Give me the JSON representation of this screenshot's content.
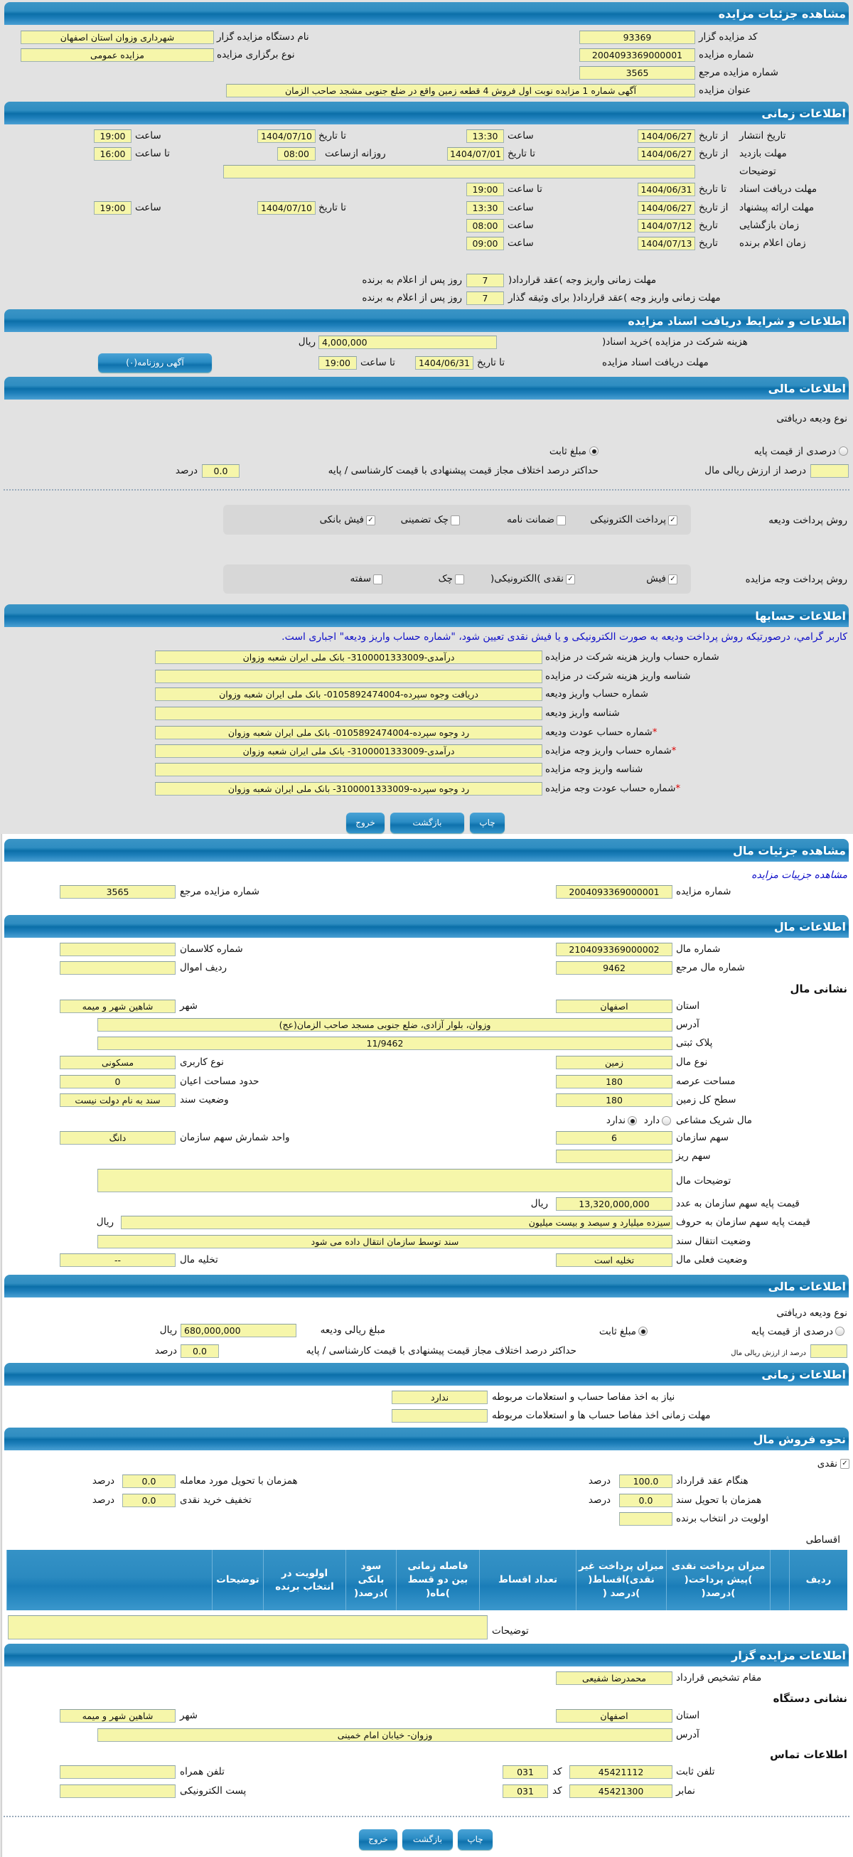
{
  "colors": {
    "header": "#0b6fa9",
    "field_bg": "#f6f6aa",
    "page_bg": "#e2e2e2",
    "notice_text": "#1010c8",
    "required_star": "#dd0000"
  },
  "auction": {
    "title": "مشاهده جزئیات مزایده",
    "auctioneer_code": {
      "label": "کد مزایده گزار",
      "value": "93369"
    },
    "auctioneer_name": {
      "label": "نام دستگاه مزایده گزار",
      "value": "شهرداری وزوان استان اصفهان"
    },
    "auction_number": {
      "label": "شماره مزایده",
      "value": "2004093369000001"
    },
    "auction_type": {
      "label": "نوع برگزاری مزایده",
      "value": "مزایده عمومی"
    },
    "reference_number": {
      "label": "شماره مزایده مرجع",
      "value": "3565"
    },
    "subject": {
      "label": "عنوان مزایده",
      "value": "آگهی شماره 1 مزایده نوبت اول فروش 4 قطعه زمین واقع در ضلع جنوبی مشجد صاحب الزمان"
    }
  },
  "timing": {
    "title": "اطلاعات زمانی",
    "publish": {
      "label": "تاریخ انتشار",
      "from_label": "از تاریخ",
      "from_date": "1404/06/27",
      "from_time_label": "ساعت",
      "from_time": "13:30",
      "to_label": "تا تاریخ",
      "to_date": "1404/07/10",
      "to_time_label": "ساعت",
      "to_time": "19:00"
    },
    "visit": {
      "label": "مهلت بازدید",
      "from_label": "از تاریخ",
      "from_date": "1404/06/27",
      "to_label": "تا تاریخ",
      "to_date": "1404/07/01",
      "daily_from_label": "روزانه ازساعت",
      "daily_from": "08:00",
      "daily_to_label": "تا ساعت",
      "daily_to": "16:00"
    },
    "description": {
      "label": "توضیحات",
      "value": ""
    },
    "documents": {
      "label": "مهلت دریافت اسناد",
      "to_label": "تا تاریخ",
      "to_date": "1404/06/31",
      "to_time_label": "تا ساعت",
      "to_time": "19:00"
    },
    "offer": {
      "label": "مهلت ارائه پیشنهاد",
      "from_label": "از تاریخ",
      "from_date": "1404/06/27",
      "from_time_label": "ساعت",
      "from_time": "13:30",
      "to_label": "تا تاریخ",
      "to_date": "1404/07/10",
      "to_time_label": "ساعت",
      "to_time": "19:00"
    },
    "opening": {
      "label": "زمان بازگشایی",
      "date_label": "تاریخ",
      "date": "1404/07/12",
      "time_label": "ساعت",
      "time": "08:00"
    },
    "winner": {
      "label": "زمان اعلام برنده",
      "date_label": "تاریخ",
      "date": "1404/07/13",
      "time_label": "ساعت",
      "time": "09:00"
    },
    "payment_deadline": {
      "label": "مهلت زمانی واریز وجه )عقد قرارداد(",
      "value": "7",
      "suffix": "روز پس از اعلام به برنده"
    },
    "collateral_deadline": {
      "label": "مهلت زمانی واریز وجه )عقد قرارداد( برای وثیقه گذار",
      "value": "7",
      "suffix": "روز پس از اعلام به برنده"
    }
  },
  "documents": {
    "title": "اطلاعات و شرایط دریافت اسناد مزایده",
    "fee": {
      "label": "هزینه شرکت در مزایده )خرید اسناد(",
      "value": "4,000,000",
      "unit": "ریال"
    },
    "deadline": {
      "label": "مهلت دریافت اسناد مزایده",
      "to_date_label": "تا تاریخ",
      "to_date": "1404/06/31",
      "to_time_label": "تا ساعت",
      "to_time": "19:00"
    },
    "newspaper_button": "آگهی روزنامه(۰)"
  },
  "finance": {
    "title": "اطلاعات مالی",
    "deposit_type_label": "نوع ودیعه دریافتی",
    "percent_option": {
      "label": "درصدی از قیمت پایه",
      "selected": false
    },
    "fixed_option": {
      "label": "مبلغ ثابت",
      "selected": true
    },
    "percent_of_value_label": "درصد از ارزش ریالی مال",
    "percent_of_value": "",
    "max_diff_label": "حداکتر درصد اختلاف مجاز قیمت پیشنهادی با قیمت کارشناسی / پایه",
    "max_diff": "0.0",
    "percent_unit": "درصد",
    "deposit_methods": {
      "label": "روش پرداخت ودیعه",
      "options": [
        {
          "label": "پرداخت الکترونیکی",
          "checked": true
        },
        {
          "label": "ضمانت نامه",
          "checked": false
        },
        {
          "label": "چک تضمینی",
          "checked": false
        },
        {
          "label": "فیش بانکی",
          "checked": true
        }
      ]
    },
    "payment_methods": {
      "label": "روش پرداخت وجه مزایده",
      "options": [
        {
          "label": "فیش",
          "checked": true
        },
        {
          "label": "نقدی )الکترونیکی(",
          "checked": true
        },
        {
          "label": "چک",
          "checked": false
        },
        {
          "label": "سفته",
          "checked": false
        }
      ]
    }
  },
  "accounts": {
    "title": "اطلاعات حسابها",
    "notice": "کاربر گرامي، درصورتیکه روش پرداخت ودیعه به صورت الکترونیکی و یا فیش نقدی تعیین شود، \"شماره حساب واریز ودیعه\" اجباری است.",
    "rows": [
      {
        "label": "شماره حساب واریز هزینه شرکت در مزایده",
        "value": "درآمدی-3100001333009- بانک ملی ایران شعبه وزوان",
        "required": false
      },
      {
        "label": "شناسه واریز هزینه شرکت در مزایده",
        "value": "",
        "required": false
      },
      {
        "label": "شماره حساب واریز ودیعه",
        "value": "دریافت وجوه سپرده-0105892474004- بانک ملی ایران شعبه وزوان",
        "required": false
      },
      {
        "label": "شناسه واریز ودیعه",
        "value": "",
        "required": false
      },
      {
        "label": "شماره حساب عودت ودیعه",
        "value": "رد وجوه سپرده-0105892474004- بانک ملی ایران شعبه وزوان",
        "required": true
      },
      {
        "label": "شماره حساب واریز وجه مزایده",
        "value": "درآمدی-3100001333009- بانک ملی ایران شعبه وزوان",
        "required": true
      },
      {
        "label": "شناسه واریز وجه مزایده",
        "value": "",
        "required": false
      },
      {
        "label": "شماره حساب عودت وجه مزایده",
        "value": "رد وجوه سپرده-3100001333009- بانک ملی ایران شعبه وزوان",
        "required": true
      }
    ]
  },
  "actions": {
    "print": "چاپ",
    "back": "بازگشت",
    "exit": "خروج"
  },
  "item": {
    "title": "مشاهده جزئیات مال",
    "auction_link": "مشاهده جزییات مزایده",
    "auction_number": {
      "label": "شماره مزایده",
      "value": "2004093369000001"
    },
    "reference_number": {
      "label": "شماره مزایده مرجع",
      "value": "3565"
    },
    "info": {
      "title": "اطلاعات مال",
      "item_number": {
        "label": "شماره مال",
        "value": "2104093369000002"
      },
      "class_number": {
        "label": "شماره کلاسمان",
        "value": ""
      },
      "item_ref": {
        "label": "شماره مال مرجع",
        "value": "9462"
      },
      "asset_row": {
        "label": "ردیف اموال",
        "value": ""
      },
      "address_heading": "نشانی مال",
      "province": {
        "label": "استان",
        "value": "اصفهان"
      },
      "city": {
        "label": "شهر",
        "value": "شاهین شهر و میمه"
      },
      "address": {
        "label": "آدرس",
        "value": "وزوان، بلوار آزادی، ضلع جنوبی مسجد صاحب الزمان(عج)"
      },
      "plate": {
        "label": "پلاک ثبتی",
        "value": "11/9462"
      },
      "item_type": {
        "label": "نوع مال",
        "value": "زمین"
      },
      "usage": {
        "label": "نوع کاربری",
        "value": "مسکونی"
      },
      "land_area": {
        "label": "مساحت عرصه",
        "value": "180"
      },
      "building_area": {
        "label": "حدود مساحت اعیان",
        "value": "0"
      },
      "total_area": {
        "label": "سطح کل زمین",
        "value": "180"
      },
      "deed_status": {
        "label": "وضعیت سند",
        "value": "سند به نام دولت نیست"
      },
      "shared": {
        "label": "مال شریک مشاعی",
        "options": [
          {
            "label": "دارد",
            "selected": false
          },
          {
            "label": "ندارد",
            "selected": true
          }
        ]
      },
      "org_share": {
        "label": "سهم سازمان",
        "value": "6"
      },
      "share_unit": {
        "label": "واحد شمارش سهم سازمان",
        "value": "دانگ"
      },
      "sub_share": {
        "label": "سهم ریز",
        "value": ""
      },
      "description": {
        "label": "توضیحات مال",
        "value": ""
      },
      "base_price_num": {
        "label": "قیمت پایه سهم سازمان به عدد",
        "value": "13,320,000,000",
        "unit": "ریال"
      },
      "base_price_words": {
        "label": "قیمت پایه سهم سازمان به حروف",
        "value": "سیزده میلیارد و سیصد و بیست میلیون",
        "unit": "ریال"
      },
      "transfer_status": {
        "label": "وضعیت انتقال سند",
        "value": "سند توسط سازمان انتقال داده می شود"
      },
      "current_status": {
        "label": "وضعیت فعلی مال",
        "value": "تخلیه است"
      },
      "evacuation": {
        "label": "تخلیه مال",
        "value": "--"
      }
    },
    "finance": {
      "title": "اطلاعات مالی",
      "deposit_type_label": "نوع ودیعه دریافتی",
      "percent_option": {
        "label": "درصدی از قیمت پایه",
        "selected": false
      },
      "fixed_option": {
        "label": "مبلغ ثابت",
        "selected": true
      },
      "deposit_amount": {
        "label": "مبلغ ریالی ودیعه",
        "value": "680,000,000",
        "unit": "ریال"
      },
      "percent_of_value_label": "درصد از ارزش ریالی مال",
      "percent_of_value": "",
      "max_diff_label": "حداکثر درصد اختلاف مجاز قیمت پیشنهادی با قیمت کارشناسی / پایه",
      "max_diff": "0.0",
      "percent_unit": "درصد"
    },
    "timing": {
      "title": "اطلاعات زمانی",
      "clearance": {
        "label": "نیاز به اخذ مفاصا حساب و استعلامات مربوطه",
        "value": "ندارد"
      },
      "clearance_deadline": {
        "label": "مهلت زمانی اخذ مفاصا حساب ها و استعلامات مربوطه",
        "value": ""
      }
    },
    "sale": {
      "title": "نحوه فروش مال",
      "cash": {
        "label": "نقدی",
        "checked": true
      },
      "on_contract": {
        "label": "هنگام عقد قرارداد",
        "value": "100.0"
      },
      "on_delivery": {
        "label": "همزمان با تحویل مورد معامله",
        "value": "0.0"
      },
      "on_deed": {
        "label": "همزمان با تحویل سند",
        "value": "0.0"
      },
      "cash_discount": {
        "label": "تخفیف خرید نقدی",
        "value": "0.0"
      },
      "winner_priority": {
        "label": "اولویت در انتخاب برنده",
        "value": ""
      },
      "percent_unit": "درصد",
      "installments_label": "اقساطی",
      "installment_columns": [
        "ردیف",
        "",
        "میزان پرداخت نقدی )پیش پرداخت( )درصد(",
        "میزان پرداخت غیر نقدی)اقساط( )درصد (",
        "تعداد اقساط",
        "فاصله زمانی بین دو قسط )ماه(",
        "سود بانکی )درصد(",
        "اولویت در انتخاب برنده",
        "توضیحات",
        ""
      ],
      "description": {
        "label": "توضیحات",
        "value": ""
      }
    },
    "auctioneer": {
      "title": "اطلاعات مزایده گزار",
      "authority": {
        "label": "مقام تشخیص قرارداد",
        "value": "محمدرضا شفیعی"
      },
      "address_heading": "نشانی دستگاه",
      "province": {
        "label": "استان",
        "value": "اصفهان"
      },
      "city": {
        "label": "شهر",
        "value": "شاهین شهر و میمه"
      },
      "address": {
        "label": "آدرس",
        "value": "وزوان- خیابان امام خمینی"
      },
      "contact_heading": "اطلاعات تماس",
      "phone": {
        "label": "تلفن ثابت",
        "code_label": "کد",
        "code": "031",
        "value": "45421112"
      },
      "mobile": {
        "label": "تلفن همراه",
        "value": ""
      },
      "fax": {
        "label": "نمابر",
        "code_label": "کد",
        "code": "031",
        "value": "45421300"
      },
      "email": {
        "label": "پست الکترونیکی",
        "value": ""
      }
    }
  }
}
